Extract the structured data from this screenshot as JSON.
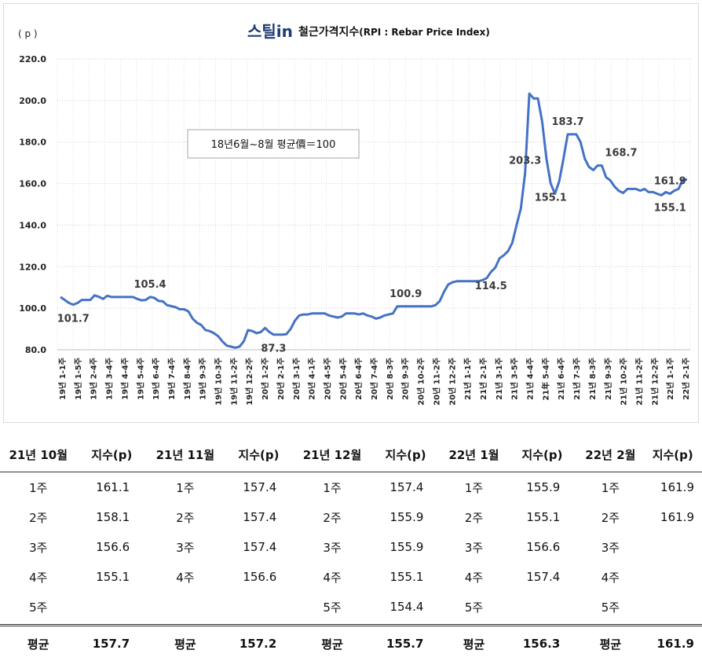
{
  "chart_data": {
    "type": "line",
    "logo_text": "스틸in",
    "title": "철근가격지수",
    "title_suffix": "(RPI : Rebar Price Index)",
    "ylabel": "( p )",
    "ylim": [
      80,
      220
    ],
    "yticks": [
      "80.0",
      "100.0",
      "120.0",
      "140.0",
      "160.0",
      "180.0",
      "200.0",
      "220.0"
    ],
    "legend_note": "18년6월~8월 평균價＝100",
    "grid": "dotted",
    "series_color": "#4472C4",
    "x_tick_labels": [
      "19년 1-1주",
      "19년 1-5주",
      "19년 2-4주",
      "19년 3-4주",
      "19년 4-4주",
      "19년 5-4주",
      "19년 6-4주",
      "19년 7-4주",
      "19년 8-4주",
      "19년 9-3주",
      "19년 10-3주",
      "19년 11-2주",
      "19년 12-2주",
      "20년 1-2주",
      "20년 2-1주",
      "20년 3-1주",
      "20년 4-1주",
      "20년 4-5주",
      "20년 5-4주",
      "20년 6-4주",
      "20년 7-4주",
      "20년 8-3주",
      "20년 9-3주",
      "20년 10-2주",
      "20년 11-2주",
      "20년 12-2주",
      "21년 1-1주",
      "21년 2-1주",
      "21년 3-1주",
      "21년 3-5주",
      "21년 4-4주",
      "21年 5-4주",
      "21년 6-4주",
      "21년 7-3주",
      "21년 8-3주",
      "21년 9-3주",
      "21년 10-2주",
      "21년 11-2주",
      "21년 12-2주",
      "22년 1-1주",
      "22년 2-1주"
    ],
    "values": [
      105.4,
      104.0,
      102.5,
      101.7,
      102.5,
      104.0,
      104.0,
      104.0,
      106.2,
      105.5,
      104.5,
      106.0,
      105.4,
      105.4,
      105.4,
      105.4,
      105.4,
      105.4,
      104.5,
      103.8,
      104.0,
      105.4,
      105.0,
      103.5,
      103.3,
      101.5,
      101.0,
      100.5,
      99.5,
      99.5,
      98.5,
      95.0,
      93.0,
      92.0,
      89.5,
      89.0,
      88.0,
      86.5,
      84.0,
      82.0,
      81.5,
      81.0,
      81.5,
      84.0,
      89.5,
      89.0,
      88.0,
      88.5,
      90.5,
      88.5,
      87.3,
      87.3,
      87.3,
      87.5,
      90.0,
      94.0,
      96.5,
      97.0,
      97.0,
      97.5,
      97.5,
      97.5,
      97.5,
      96.5,
      96.0,
      95.5,
      96.0,
      97.5,
      97.5,
      97.5,
      97.0,
      97.5,
      96.5,
      96.0,
      95.0,
      95.5,
      96.5,
      97.0,
      97.5,
      100.9,
      100.9,
      100.9,
      100.9,
      100.9,
      100.9,
      100.9,
      100.9,
      100.9,
      101.5,
      103.5,
      108.0,
      111.5,
      112.5,
      113.0,
      113.0,
      113.0,
      113.0,
      113.0,
      113.0,
      113.5,
      114.5,
      117.5,
      119.5,
      124.0,
      125.5,
      127.5,
      131.5,
      140.0,
      148.0,
      165.0,
      203.3,
      201.0,
      201.0,
      190.0,
      172.0,
      160.0,
      155.1,
      161.0,
      172.0,
      183.7,
      183.7,
      183.7,
      180.0,
      172.0,
      168.0,
      166.5,
      168.7,
      168.7,
      163.0,
      161.5,
      158.5,
      156.5,
      155.5,
      157.4,
      157.4,
      157.4,
      156.6,
      157.4,
      155.9,
      155.9,
      155.1,
      154.4,
      155.9,
      155.1,
      156.6,
      157.4,
      161.9,
      161.9
    ],
    "annotations": [
      {
        "text": "101.7",
        "index": 3,
        "pos": "below"
      },
      {
        "text": "105.4",
        "index": 21,
        "pos": "above"
      },
      {
        "text": "87.3",
        "index": 50,
        "pos": "below"
      },
      {
        "text": "100.9",
        "index": 81,
        "pos": "above"
      },
      {
        "text": "114.5",
        "index": 101,
        "pos": "below"
      },
      {
        "text": "203.3",
        "index": 109,
        "pos": "above"
      },
      {
        "text": "155.1",
        "index": 115,
        "pos": "below"
      },
      {
        "text": "183.7",
        "index": 119,
        "pos": "above"
      },
      {
        "text": "168.7",
        "index": 127,
        "pos": "above-right"
      },
      {
        "text": "161.9",
        "index": 143,
        "pos": "above"
      },
      {
        "text": "155.1",
        "index": 143,
        "pos": "below"
      }
    ]
  },
  "table": {
    "headers": [
      "21년 10월",
      "지수(p)",
      "21년 11월",
      "지수(p)",
      "21년 12월",
      "지수(p)",
      "22년 1월",
      "지수(p)",
      "22년 2월",
      "지수(p)"
    ],
    "rows": [
      [
        "1주",
        "161.1",
        "1주",
        "157.4",
        "1주",
        "157.4",
        "1주",
        "155.9",
        "1주",
        "161.9"
      ],
      [
        "2주",
        "158.1",
        "2주",
        "157.4",
        "2주",
        "155.9",
        "2주",
        "155.1",
        "2주",
        "161.9"
      ],
      [
        "3주",
        "156.6",
        "3주",
        "157.4",
        "3주",
        "155.9",
        "3주",
        "156.6",
        "3주",
        ""
      ],
      [
        "4주",
        "155.1",
        "4주",
        "156.6",
        "4주",
        "155.1",
        "4주",
        "157.4",
        "4주",
        ""
      ],
      [
        "5주",
        "",
        "",
        "",
        "5주",
        "154.4",
        "5주",
        "",
        "5주",
        ""
      ]
    ],
    "average_label": "평균",
    "averages": [
      "157.7",
      "157.2",
      "155.7",
      "156.3",
      "161.9"
    ]
  }
}
